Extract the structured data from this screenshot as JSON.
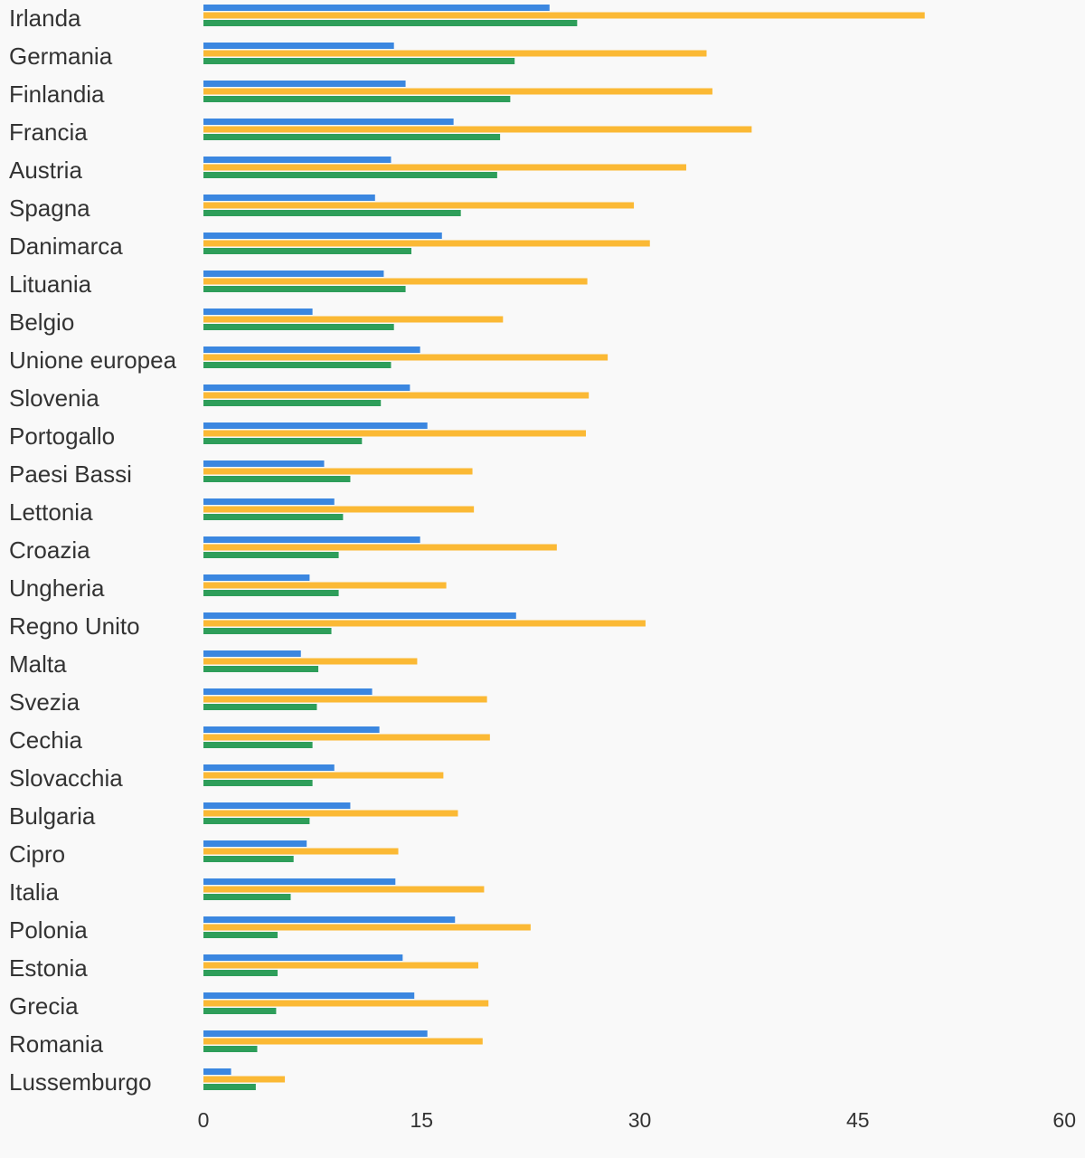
{
  "chart_data": {
    "type": "bar",
    "orientation": "horizontal",
    "title": "",
    "xlabel": "",
    "ylabel": "",
    "xlim": [
      0,
      60
    ],
    "xticks": [
      0,
      15,
      30,
      45,
      60
    ],
    "grid": false,
    "legend": "none",
    "categories": [
      "Irlanda",
      "Germania",
      "Finlandia",
      "Francia",
      "Austria",
      "Spagna",
      "Danimarca",
      "Lituania",
      "Belgio",
      "Unione europea",
      "Slovenia",
      "Portogallo",
      "Paesi Bassi",
      "Lettonia",
      "Croazia",
      "Ungheria",
      "Regno Unito",
      "Malta",
      "Svezia",
      "Cechia",
      "Slovacchia",
      "Bulgaria",
      "Cipro",
      "Italia",
      "Polonia",
      "Estonia",
      "Grecia",
      "Romania",
      "Lussemburgo"
    ],
    "series": [
      {
        "color": "#3b87e0",
        "values": [
          23.8,
          13.1,
          13.9,
          17.2,
          12.9,
          11.8,
          16.4,
          12.4,
          7.5,
          14.9,
          14.2,
          15.4,
          8.3,
          9.0,
          14.9,
          7.3,
          21.5,
          6.7,
          11.6,
          12.1,
          9.0,
          10.1,
          7.1,
          13.2,
          17.3,
          13.7,
          14.5,
          15.4,
          1.9
        ]
      },
      {
        "color": "#fbb935",
        "values": [
          49.6,
          34.6,
          35.0,
          37.7,
          33.2,
          29.6,
          30.7,
          26.4,
          20.6,
          27.8,
          26.5,
          26.3,
          18.5,
          18.6,
          24.3,
          16.7,
          30.4,
          14.7,
          19.5,
          19.7,
          16.5,
          17.5,
          13.4,
          19.3,
          22.5,
          18.9,
          19.6,
          19.2,
          5.6
        ]
      },
      {
        "color": "#2e9e5a",
        "values": [
          25.7,
          21.4,
          21.1,
          20.4,
          20.2,
          17.7,
          14.3,
          13.9,
          13.1,
          12.9,
          12.2,
          10.9,
          10.1,
          9.6,
          9.3,
          9.3,
          8.8,
          7.9,
          7.8,
          7.5,
          7.5,
          7.3,
          6.2,
          6.0,
          5.1,
          5.1,
          5.0,
          3.7,
          3.6
        ]
      }
    ]
  }
}
